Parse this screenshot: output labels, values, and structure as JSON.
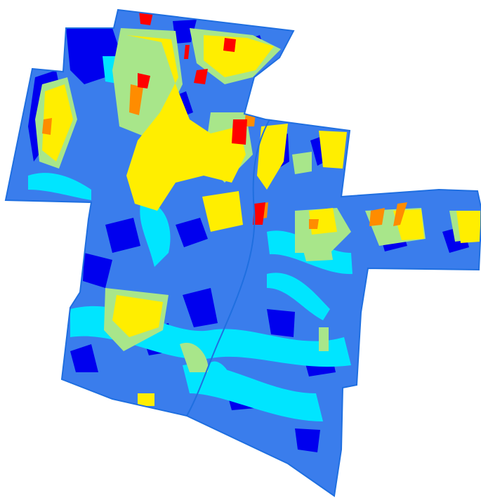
{
  "map": {
    "colors": {
      "very_low": "#0000ee",
      "low": "#3a7dec",
      "medium_low": "#00e5ff",
      "medium": "#a8e68a",
      "high": "#ffee00",
      "very_high": "#ff8c00",
      "extreme": "#ff0000",
      "boundary": "#1f6fe0"
    }
  }
}
